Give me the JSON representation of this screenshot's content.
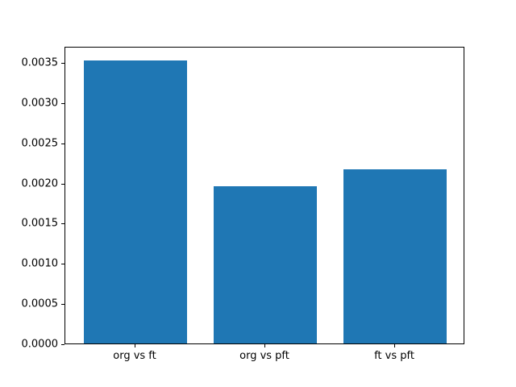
{
  "figure": {
    "background": "#ffffff",
    "axes_color": "#000000",
    "text_color": "#000000"
  },
  "chart_data": {
    "type": "bar",
    "title": "",
    "xlabel": "",
    "ylabel": "",
    "categories": [
      "org vs ft",
      "org vs pft",
      "ft vs pft"
    ],
    "values": [
      0.00352,
      0.00196,
      0.00217
    ],
    "bar_color": "#1f77b4",
    "bar_width_fraction": 0.8,
    "ylim": [
      0,
      0.0037
    ],
    "ytick_values": [
      0,
      0.0005,
      0.001,
      0.0015,
      0.002,
      0.0025,
      0.003,
      0.0035
    ],
    "ytick_labels": [
      "0.0000",
      "0.0005",
      "0.0010",
      "0.0015",
      "0.0020",
      "0.0025",
      "0.0030",
      "0.0035"
    ],
    "grid": false,
    "legend": null
  }
}
